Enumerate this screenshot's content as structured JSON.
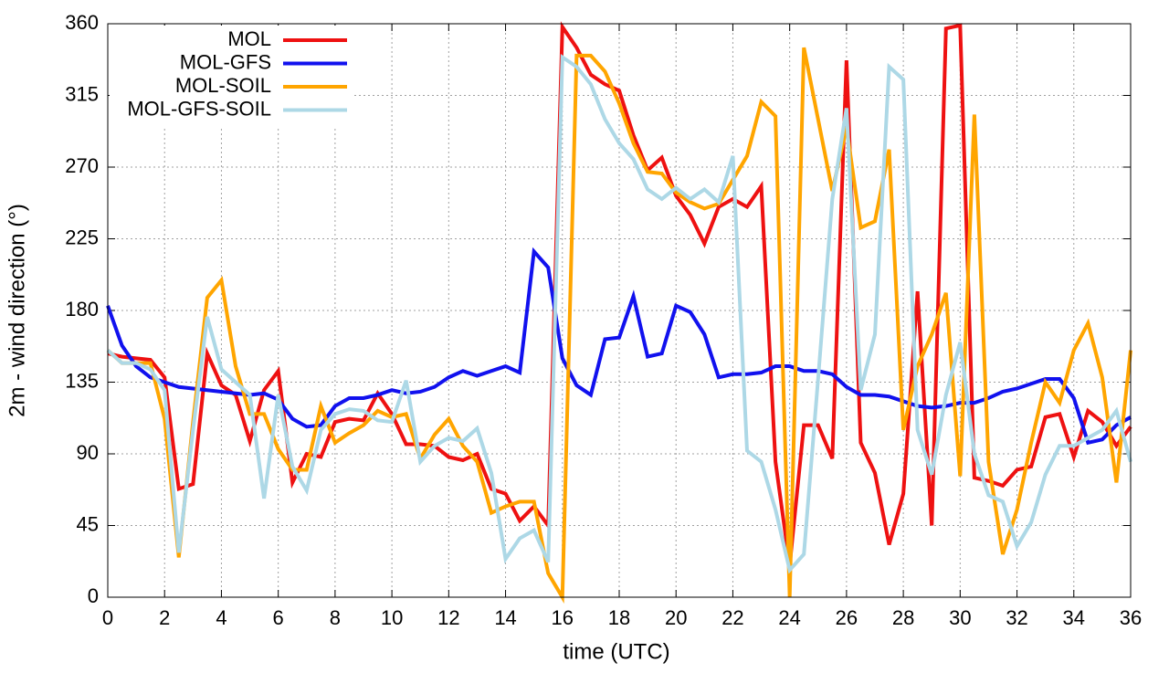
{
  "chart_data": {
    "type": "line",
    "x_label": "time (UTC)",
    "y_label": "2m - wind direction (°)",
    "xlim": [
      0,
      36
    ],
    "ylim": [
      0,
      360
    ],
    "xticks": [
      0,
      2,
      4,
      6,
      8,
      10,
      12,
      14,
      16,
      18,
      20,
      22,
      24,
      26,
      28,
      30,
      32,
      34,
      36
    ],
    "yticks": [
      0,
      45,
      90,
      135,
      180,
      225,
      270,
      315,
      360
    ],
    "grid": true,
    "legend": "upper-left",
    "x": [
      0,
      0.5,
      1,
      1.5,
      2,
      2.5,
      3,
      3.5,
      4,
      4.5,
      5,
      5.5,
      6,
      6.5,
      7,
      7.5,
      8,
      8.5,
      9,
      9.5,
      10,
      10.5,
      11,
      11.5,
      12,
      12.5,
      13,
      13.5,
      14,
      14.5,
      15,
      15.5,
      16,
      16.5,
      17,
      17.5,
      18,
      18.5,
      19,
      19.5,
      20,
      20.5,
      21,
      21.5,
      22,
      22.5,
      23,
      23.5,
      24,
      24.5,
      25,
      25.5,
      26,
      26.5,
      27,
      27.5,
      28,
      28.5,
      29,
      29.5,
      30,
      30.5,
      31,
      31.5,
      32,
      32.5,
      33,
      33.5,
      34,
      34.5,
      35,
      35.5,
      36
    ],
    "series": [
      {
        "name": "MOL",
        "color": "#ee1111",
        "values": [
          153,
          151,
          150,
          149,
          138,
          68,
          71,
          153,
          133,
          127,
          98,
          130,
          142,
          72,
          90,
          88,
          110,
          112,
          111,
          128,
          115,
          96,
          96,
          95,
          88,
          86,
          90,
          68,
          65,
          48,
          57,
          45,
          358,
          345,
          328,
          322,
          318,
          290,
          268,
          276,
          252,
          240,
          222,
          245,
          250,
          245,
          258,
          85,
          20,
          108,
          108,
          87,
          337,
          97,
          78,
          33,
          65,
          192,
          45,
          357,
          359,
          75,
          73,
          70,
          80,
          82,
          113,
          115,
          88,
          117,
          110,
          95,
          107
        ]
      },
      {
        "name": "MOL-GFS",
        "color": "#1111ee",
        "values": [
          183,
          158,
          145,
          138,
          135,
          132,
          131,
          130,
          129,
          128,
          127,
          128,
          124,
          112,
          107,
          108,
          120,
          125,
          125,
          127,
          130,
          128,
          129,
          132,
          138,
          142,
          139,
          142,
          145,
          141,
          217,
          207,
          150,
          133,
          127,
          162,
          163,
          189,
          151,
          153,
          183,
          179,
          165,
          138,
          140,
          140,
          141,
          145,
          145,
          142,
          142,
          140,
          132,
          127,
          127,
          126,
          123,
          120,
          119,
          120,
          122,
          122,
          125,
          129,
          131,
          134,
          137,
          137,
          125,
          97,
          99,
          108,
          113
        ]
      },
      {
        "name": "MOL-SOIL",
        "color": "#ffa500",
        "values": [
          155,
          147,
          147,
          147,
          112,
          25,
          110,
          188,
          199,
          145,
          115,
          115,
          93,
          80,
          80,
          120,
          97,
          103,
          108,
          117,
          113,
          115,
          87,
          102,
          112,
          95,
          85,
          53,
          57,
          60,
          60,
          15,
          0,
          340,
          340,
          330,
          310,
          285,
          267,
          266,
          254,
          248,
          244,
          247,
          262,
          277,
          311,
          302,
          0,
          345,
          300,
          255,
          295,
          232,
          236,
          281,
          105,
          145,
          165,
          191,
          76,
          303,
          85,
          27,
          55,
          97,
          135,
          122,
          155,
          172,
          138,
          72,
          155
        ]
      },
      {
        "name": "MOL-GFS-SOIL",
        "color": "#add8e6",
        "values": [
          155,
          147,
          147,
          143,
          130,
          28,
          105,
          176,
          143,
          135,
          127,
          62,
          127,
          82,
          67,
          105,
          115,
          118,
          117,
          111,
          110,
          136,
          85,
          95,
          100,
          98,
          106,
          78,
          24,
          37,
          42,
          22,
          339,
          333,
          322,
          300,
          285,
          275,
          256,
          250,
          257,
          250,
          256,
          248,
          277,
          92,
          85,
          55,
          17,
          27,
          137,
          250,
          307,
          130,
          165,
          333,
          325,
          105,
          77,
          127,
          160,
          90,
          64,
          60,
          32,
          47,
          77,
          95,
          95,
          100,
          105,
          117,
          85
        ]
      }
    ]
  }
}
